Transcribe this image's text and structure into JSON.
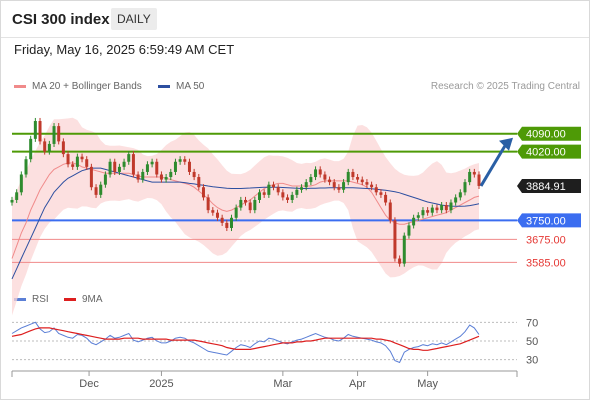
{
  "header": {
    "title": "CSI 300 index",
    "timeframe": "DAILY"
  },
  "timestamp": "Friday, May 16, 2025 6:59:49 AM CET",
  "legend": {
    "ma20": {
      "label": "MA 20 + Bollinger Bands",
      "color": "#f08a8a"
    },
    "ma50": {
      "label": "MA 50",
      "color": "#2d4fa0"
    }
  },
  "research_label": "Research © 2025 Trading Central",
  "rsi_legend": {
    "rsi": {
      "label": "RSI",
      "color": "#5b7fd6"
    },
    "ma9": {
      "label": "9MA",
      "color": "#dd1f1f"
    }
  },
  "colors": {
    "bull_candle": "#2e8b2e",
    "bear_candle": "#c0392b",
    "resistance": "#4e9a06",
    "current_level": "#1e1e1e",
    "pivot": "#3b6df0",
    "support": "#f08a8a",
    "bollinger_fill": "#fbd5d5",
    "arrow": "#2a5fa5"
  },
  "chart_data": [
    {
      "type": "candlestick",
      "title": "CSI 300 index",
      "x_ticks": [
        "Dec",
        "2025",
        "Mar",
        "Apr",
        "May"
      ],
      "ylim": [
        3500,
        4250
      ],
      "levels": [
        {
          "label": "4090.00",
          "value": 4090,
          "kind": "resistance"
        },
        {
          "label": "4020.00",
          "value": 4020,
          "kind": "resistance"
        },
        {
          "label": "3884.91",
          "value": 3884.91,
          "kind": "current"
        },
        {
          "label": "3750.00",
          "value": 3750,
          "kind": "pivot"
        },
        {
          "label": "3675.00",
          "value": 3675,
          "kind": "support"
        },
        {
          "label": "3585.00",
          "value": 3585,
          "kind": "support"
        }
      ],
      "close": [
        3830,
        3860,
        3930,
        3990,
        4070,
        4140,
        4060,
        4020,
        4050,
        4120,
        4060,
        4010,
        3970,
        3960,
        4000,
        3990,
        3960,
        3880,
        3850,
        3890,
        3930,
        3980,
        3940,
        3960,
        3980,
        4010,
        3930,
        3910,
        3940,
        3970,
        3980,
        3930,
        3910,
        3920,
        3940,
        3980,
        3990,
        3980,
        3940,
        3920,
        3880,
        3840,
        3790,
        3780,
        3760,
        3740,
        3720,
        3760,
        3800,
        3830,
        3820,
        3790,
        3830,
        3860,
        3850,
        3890,
        3880,
        3860,
        3840,
        3830,
        3850,
        3870,
        3880,
        3900,
        3920,
        3950,
        3930,
        3910,
        3900,
        3880,
        3870,
        3900,
        3940,
        3920,
        3910,
        3900,
        3890,
        3880,
        3860,
        3850,
        3820,
        3750,
        3600,
        3580,
        3690,
        3730,
        3760,
        3770,
        3790,
        3780,
        3800,
        3790,
        3810,
        3790,
        3820,
        3840,
        3860,
        3900,
        3940,
        3930,
        3885
      ],
      "ma20": [
        3600,
        3650,
        3700,
        3740,
        3790,
        3830,
        3870,
        3900,
        3930,
        3950,
        3960,
        3970,
        3975,
        3975,
        3970,
        3960,
        3955,
        3950,
        3945,
        3940,
        3935,
        3935,
        3935,
        3935,
        3935,
        3935,
        3930,
        3925,
        3920,
        3920,
        3920,
        3920,
        3920,
        3915,
        3910,
        3905,
        3900,
        3895,
        3890,
        3880,
        3865,
        3850,
        3835,
        3815,
        3800,
        3790,
        3785,
        3790,
        3800,
        3810,
        3820,
        3830,
        3845,
        3860,
        3875,
        3885,
        3890,
        3895,
        3895,
        3890,
        3885,
        3885,
        3885,
        3885,
        3885,
        3890,
        3900,
        3905,
        3905,
        3905,
        3905,
        3905,
        3905,
        3900,
        3895,
        3890,
        3880,
        3860,
        3830,
        3800,
        3770,
        3750,
        3740,
        3735,
        3735,
        3740,
        3745,
        3750,
        3755,
        3760,
        3765,
        3770,
        3775,
        3780,
        3790,
        3800,
        3810,
        3820,
        3830,
        3840,
        3845
      ],
      "ma50": [
        3520,
        3560,
        3600,
        3640,
        3680,
        3720,
        3760,
        3800,
        3830,
        3860,
        3880,
        3900,
        3915,
        3925,
        3935,
        3945,
        3950,
        3955,
        3955,
        3955,
        3950,
        3945,
        3940,
        3935,
        3930,
        3925,
        3920,
        3915,
        3910,
        3905,
        3900,
        3900,
        3900,
        3900,
        3900,
        3900,
        3900,
        3898,
        3895,
        3893,
        3890,
        3888,
        3885,
        3882,
        3880,
        3878,
        3876,
        3875,
        3875,
        3875,
        3876,
        3877,
        3878,
        3879,
        3880,
        3880,
        3880,
        3880,
        3879,
        3878,
        3877,
        3876,
        3875,
        3875,
        3876,
        3876,
        3877,
        3877,
        3878,
        3878,
        3878,
        3878,
        3878,
        3878,
        3877,
        3876,
        3875,
        3874,
        3872,
        3870,
        3868,
        3865,
        3862,
        3858,
        3852,
        3846,
        3840,
        3834,
        3828,
        3822,
        3818,
        3814,
        3810,
        3808,
        3806,
        3805,
        3805,
        3806,
        3808,
        3811,
        3815
      ]
    },
    {
      "type": "line",
      "title": "RSI",
      "ylim": [
        20,
        80
      ],
      "y_ticks": [
        70,
        50,
        30
      ],
      "series": [
        {
          "name": "RSI",
          "values": [
            58,
            61,
            64,
            66,
            68,
            70,
            63,
            59,
            60,
            64,
            58,
            56,
            54,
            53,
            57,
            56,
            53,
            48,
            46,
            49,
            52,
            56,
            53,
            54,
            56,
            58,
            51,
            49,
            51,
            53,
            54,
            50,
            48,
            48,
            50,
            53,
            54,
            53,
            50,
            48,
            45,
            42,
            39,
            38,
            37,
            36,
            35,
            39,
            43,
            46,
            45,
            43,
            47,
            50,
            49,
            53,
            52,
            50,
            48,
            47,
            49,
            51,
            52,
            54,
            56,
            58,
            56,
            54,
            53,
            51,
            50,
            53,
            57,
            55,
            54,
            53,
            52,
            51,
            49,
            48,
            45,
            39,
            29,
            27,
            38,
            41,
            43,
            44,
            46,
            45,
            47,
            46,
            48,
            46,
            49,
            52,
            55,
            60,
            67,
            64,
            57
          ]
        },
        {
          "name": "9MA",
          "values": [
            55,
            56,
            57,
            59,
            61,
            63,
            64,
            64,
            64,
            63,
            62,
            61,
            60,
            59,
            58,
            57,
            56,
            55,
            54,
            53,
            52,
            52,
            52,
            52,
            53,
            53,
            53,
            53,
            52,
            52,
            52,
            52,
            52,
            52,
            51,
            51,
            51,
            51,
            51,
            51,
            50,
            49,
            48,
            47,
            46,
            45,
            43,
            42,
            41,
            41,
            41,
            41,
            42,
            43,
            44,
            45,
            46,
            47,
            48,
            48,
            48,
            49,
            49,
            50,
            50,
            51,
            52,
            53,
            53,
            53,
            53,
            53,
            53,
            53,
            53,
            53,
            53,
            53,
            52,
            52,
            51,
            50,
            48,
            46,
            44,
            42,
            41,
            41,
            40,
            40,
            41,
            42,
            43,
            44,
            45,
            46,
            47,
            49,
            51,
            53,
            55
          ]
        }
      ]
    }
  ]
}
